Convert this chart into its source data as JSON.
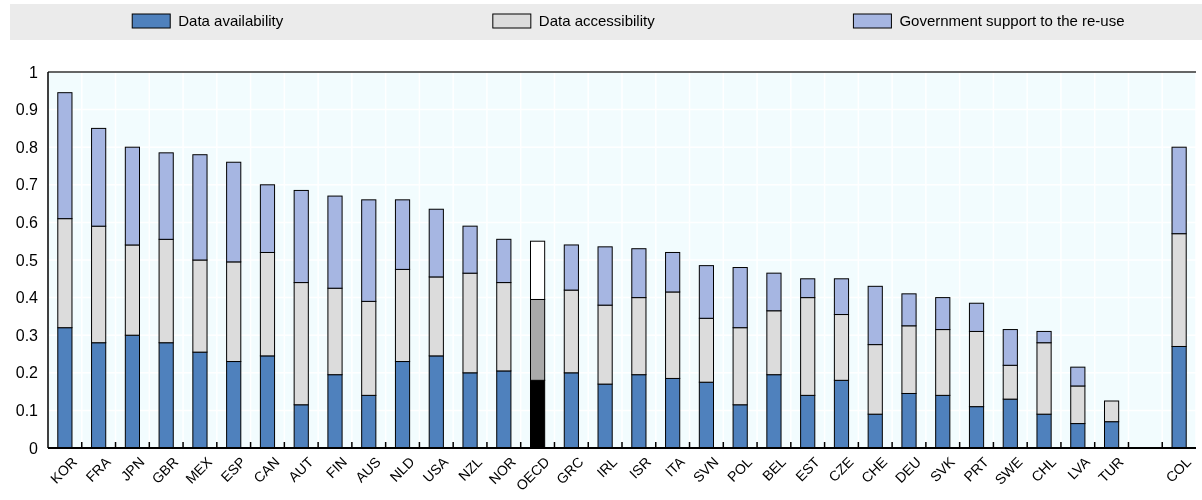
{
  "chart_data": {
    "type": "bar",
    "stacked": true,
    "legend": "top",
    "grid": true,
    "ylim": [
      0,
      1
    ],
    "yticks": [
      0,
      {
        "value": 0.1,
        "label": "0.1"
      },
      {
        "value": 0.2,
        "label": "0.2"
      },
      {
        "value": 0.3,
        "label": "0.3"
      },
      {
        "value": 0.4,
        "label": "0.4"
      },
      {
        "value": 0.5,
        "label": "0.5"
      },
      {
        "value": 0.6,
        "label": "0.6"
      },
      {
        "value": 0.7,
        "label": "0.7"
      },
      {
        "value": 0.8,
        "label": "0.8"
      },
      {
        "value": 0.9,
        "label": "0.9"
      },
      1
    ],
    "categories": [
      "KOR",
      "FRA",
      "JPN",
      "GBR",
      "MEX",
      "ESP",
      "CAN",
      "AUT",
      "FIN",
      "AUS",
      "NLD",
      "USA",
      "NZL",
      "NOR",
      "OECD",
      "GRC",
      "IRL",
      "ISR",
      "ITA",
      "SVN",
      "POL",
      "BEL",
      "EST",
      "CZE",
      "CHE",
      "DEU",
      "SVK",
      "PRT",
      "SWE",
      "CHL",
      "LVA",
      "TUR",
      null,
      "COL"
    ],
    "series": [
      {
        "name": "Data availability",
        "color": "#4f81bd",
        "colors": [
          "#4f81bd",
          "#4f81bd",
          "#4f81bd",
          "#4f81bd",
          "#4f81bd",
          "#4f81bd",
          "#4f81bd",
          "#4f81bd",
          "#4f81bd",
          "#4f81bd",
          "#4f81bd",
          "#4f81bd",
          "#4f81bd",
          "#4f81bd",
          "#000000",
          "#4f81bd",
          "#4f81bd",
          "#4f81bd",
          "#4f81bd",
          "#4f81bd",
          "#4f81bd",
          "#4f81bd",
          "#4f81bd",
          "#4f81bd",
          "#4f81bd",
          "#4f81bd",
          "#4f81bd",
          "#4f81bd",
          "#4f81bd",
          "#4f81bd",
          "#4f81bd",
          "#4f81bd",
          null,
          "#4f81bd"
        ],
        "values": [
          0.32,
          0.28,
          0.3,
          0.28,
          0.255,
          0.23,
          0.245,
          0.115,
          0.195,
          0.14,
          0.23,
          0.245,
          0.2,
          0.205,
          0.18,
          0.2,
          0.17,
          0.195,
          0.185,
          0.175,
          0.115,
          0.195,
          0.14,
          0.18,
          0.09,
          0.145,
          0.14,
          0.11,
          0.13,
          0.09,
          0.065,
          0.07,
          null,
          0.27
        ]
      },
      {
        "name": "Data accessibility",
        "color": "#dcdcdc",
        "colors": [
          "#dcdcdc",
          "#dcdcdc",
          "#dcdcdc",
          "#dcdcdc",
          "#dcdcdc",
          "#dcdcdc",
          "#dcdcdc",
          "#dcdcdc",
          "#dcdcdc",
          "#dcdcdc",
          "#dcdcdc",
          "#dcdcdc",
          "#dcdcdc",
          "#dcdcdc",
          "#a9a9a9",
          "#dcdcdc",
          "#dcdcdc",
          "#dcdcdc",
          "#dcdcdc",
          "#dcdcdc",
          "#dcdcdc",
          "#dcdcdc",
          "#dcdcdc",
          "#dcdcdc",
          "#dcdcdc",
          "#dcdcdc",
          "#dcdcdc",
          "#dcdcdc",
          "#dcdcdc",
          "#dcdcdc",
          "#dcdcdc",
          "#dcdcdc",
          null,
          "#dcdcdc"
        ],
        "values": [
          0.29,
          0.31,
          0.24,
          0.275,
          0.245,
          0.265,
          0.275,
          0.325,
          0.23,
          0.25,
          0.245,
          0.21,
          0.265,
          0.235,
          0.215,
          0.22,
          0.21,
          0.205,
          0.23,
          0.17,
          0.205,
          0.17,
          0.26,
          0.175,
          0.185,
          0.18,
          0.175,
          0.2,
          0.09,
          0.19,
          0.1,
          0.055,
          null,
          0.3
        ]
      },
      {
        "name": "Government support to the re-use",
        "color": "#a6b6e2",
        "colors": [
          "#a6b6e2",
          "#a6b6e2",
          "#a6b6e2",
          "#a6b6e2",
          "#a6b6e2",
          "#a6b6e2",
          "#a6b6e2",
          "#a6b6e2",
          "#a6b6e2",
          "#a6b6e2",
          "#a6b6e2",
          "#a6b6e2",
          "#a6b6e2",
          "#a6b6e2",
          "#ffffff",
          "#a6b6e2",
          "#a6b6e2",
          "#a6b6e2",
          "#a6b6e2",
          "#a6b6e2",
          "#a6b6e2",
          "#a6b6e2",
          "#a6b6e2",
          "#a6b6e2",
          "#a6b6e2",
          "#a6b6e2",
          "#a6b6e2",
          "#a6b6e2",
          "#a6b6e2",
          "#a6b6e2",
          "#a6b6e2",
          null,
          null,
          "#a6b6e2"
        ],
        "values": [
          0.335,
          0.26,
          0.26,
          0.23,
          0.28,
          0.265,
          0.18,
          0.245,
          0.245,
          0.27,
          0.185,
          0.18,
          0.125,
          0.115,
          0.155,
          0.12,
          0.155,
          0.13,
          0.105,
          0.14,
          0.16,
          0.1,
          0.05,
          0.095,
          0.155,
          0.085,
          0.085,
          0.075,
          0.095,
          0.03,
          0.05,
          null,
          null,
          0.23
        ]
      }
    ]
  }
}
